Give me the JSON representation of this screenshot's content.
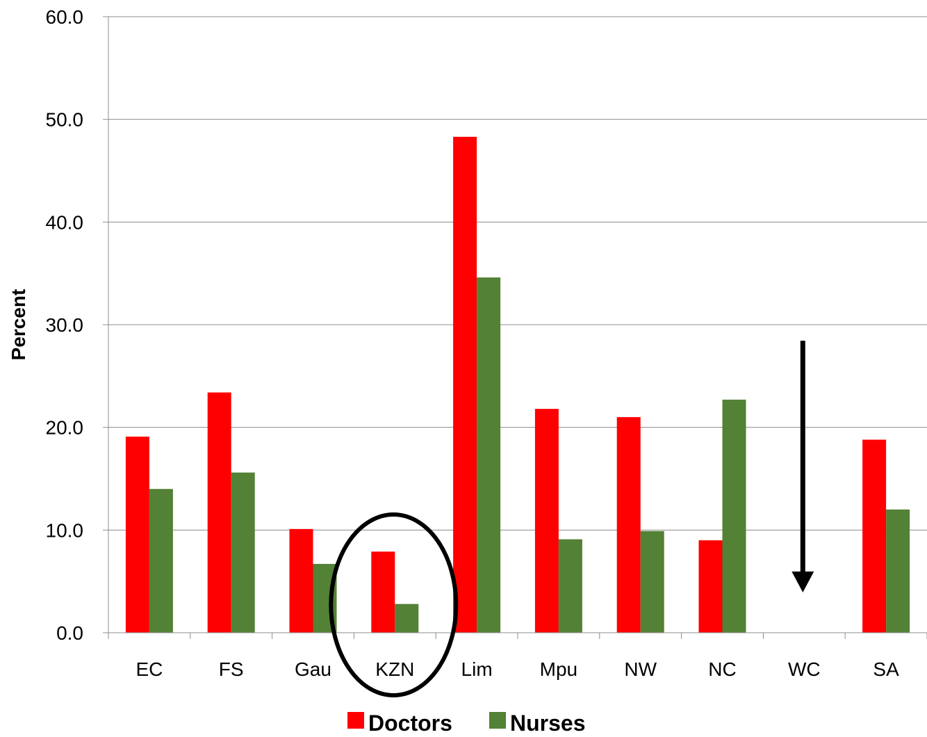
{
  "chart_data": {
    "type": "bar",
    "title": "",
    "xlabel": "",
    "ylabel": "Percent",
    "ylim": [
      0,
      60
    ],
    "yticks": [
      "0.0",
      "10.0",
      "20.0",
      "30.0",
      "40.0",
      "50.0",
      "60.0"
    ],
    "grid": true,
    "legend": "bottom",
    "categories": [
      "EC",
      "FS",
      "Gau",
      "KZN",
      "Lim",
      "Mpu",
      "NW",
      "NC",
      "WC",
      "SA"
    ],
    "series": [
      {
        "name": "Doctors",
        "color": "#ff0000",
        "values": [
          19.1,
          23.4,
          10.1,
          7.9,
          48.3,
          21.8,
          21.0,
          9.0,
          null,
          18.8
        ]
      },
      {
        "name": "Nurses",
        "color": "#538135",
        "values": [
          14.0,
          15.6,
          6.7,
          2.8,
          34.6,
          9.1,
          9.9,
          22.7,
          null,
          12.0
        ]
      }
    ],
    "annotations": [
      {
        "type": "ellipse",
        "category": "KZN",
        "meaning": "highlighted"
      },
      {
        "type": "arrow-down",
        "category": "WC",
        "meaning": "decline"
      }
    ]
  }
}
